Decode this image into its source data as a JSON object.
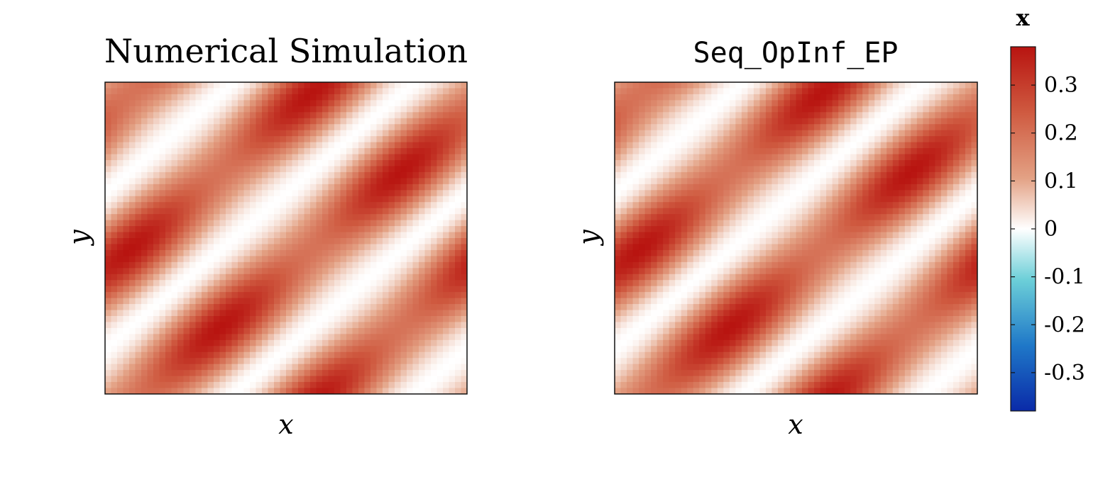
{
  "chart_data": [
    {
      "type": "heatmap",
      "title": "Numerical Simulation",
      "xlabel": "x",
      "ylabel": "y",
      "field": "x",
      "field_description": "diagonal bands: blue/red lobes alternating along the bottom-left to top-right direction",
      "extrema": {
        "min": -0.38,
        "max": 0.38
      }
    },
    {
      "type": "heatmap",
      "title": "Seq_OpInf_EP",
      "xlabel": "x",
      "ylabel": "y",
      "field": "x",
      "field_description": "diagonal bands: blue/red lobes alternating along the bottom-left to top-right direction",
      "extrema": {
        "min": -0.38,
        "max": 0.38
      }
    }
  ],
  "colorbar": {
    "label": "x",
    "range": [
      -0.38,
      0.38
    ],
    "ticks": [
      0.3,
      0.2,
      0.1,
      0,
      -0.1,
      -0.2,
      -0.3
    ],
    "tick_labels": [
      "0.3",
      "0.2",
      "0.1",
      "0",
      "-0.1",
      "-0.2",
      "-0.3"
    ],
    "colormap": [
      "#0a2aa8",
      "#1f78c8",
      "#6ccfd8",
      "#ffffff",
      "#e3a184",
      "#cf5a40",
      "#b81410"
    ]
  }
}
